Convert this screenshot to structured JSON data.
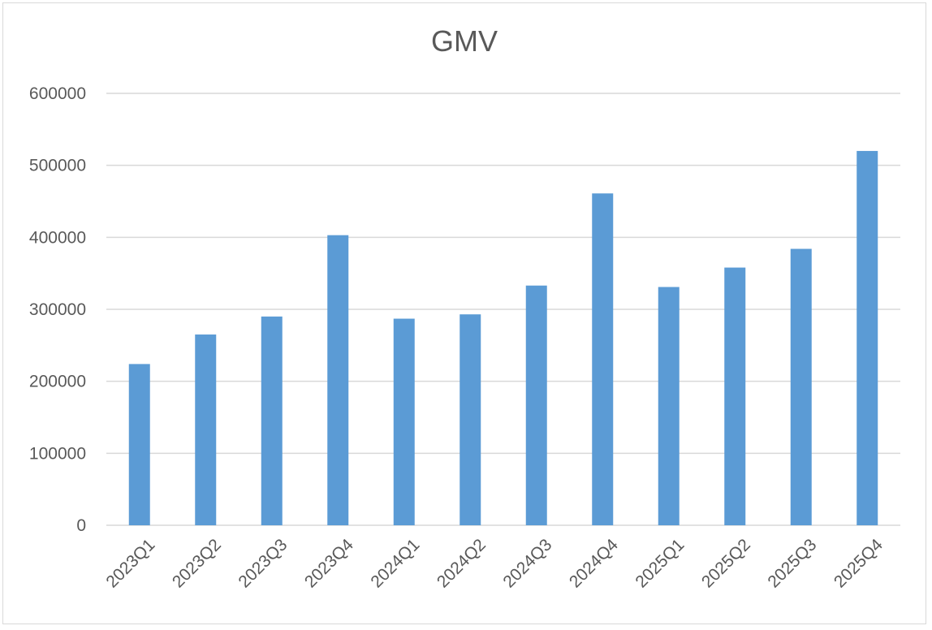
{
  "chart_data": {
    "type": "bar",
    "title": "GMV",
    "xlabel": "",
    "ylabel": "",
    "categories": [
      "2023Q1",
      "2023Q2",
      "2023Q3",
      "2023Q4",
      "2024Q1",
      "2024Q2",
      "2024Q3",
      "2024Q4",
      "2025Q1",
      "2025Q2",
      "2025Q3",
      "2025Q4"
    ],
    "series": [
      {
        "values": [
          224000,
          265000,
          290000,
          403000,
          287000,
          293000,
          333000,
          461000,
          331000,
          358000,
          384000,
          520000
        ],
        "color": "#5b9bd5"
      }
    ],
    "ylim": [
      0,
      600000
    ],
    "yticks": [
      "0",
      "100000",
      "200000",
      "300000",
      "400000",
      "500000",
      "600000"
    ],
    "grid": true,
    "legend": "none",
    "colors": {
      "bar": "#5b9bd5",
      "grid": "#d9d9d9",
      "text": "#595959"
    }
  }
}
